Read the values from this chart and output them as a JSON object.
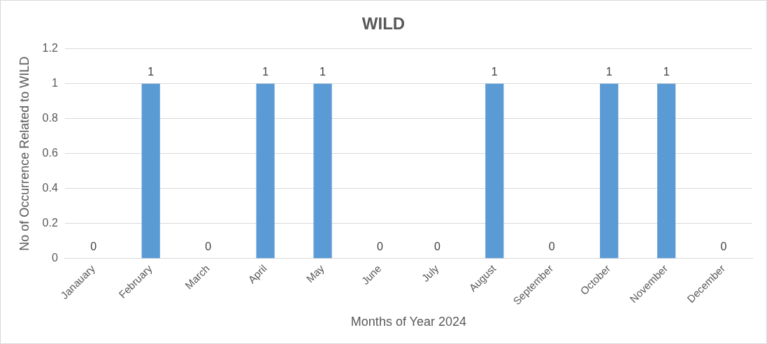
{
  "chart_data": {
    "type": "bar",
    "title": "WILD",
    "xlabel": "Months of Year 2024",
    "ylabel": "No of Occurrence Related to WILD",
    "categories": [
      "Janauary",
      "February",
      "March",
      "April",
      "May",
      "June",
      "July",
      "August",
      "September",
      "October",
      "November",
      "December"
    ],
    "values": [
      0,
      1,
      0,
      1,
      1,
      0,
      0,
      1,
      0,
      1,
      1,
      0
    ],
    "color": "#5b9bd5",
    "ylim": [
      0,
      1.2
    ],
    "yticks": [
      0,
      0.2,
      0.4,
      0.6,
      0.8,
      1,
      1.2
    ],
    "grid": "y",
    "legend": false,
    "data_labels": true
  }
}
